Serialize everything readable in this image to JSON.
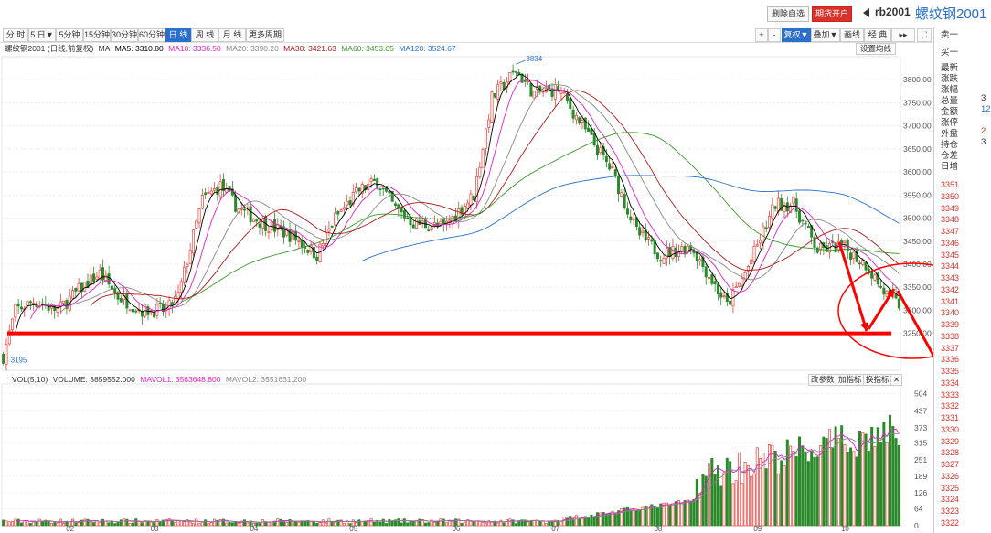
{
  "header": {
    "delete_watch_label": "删除自选",
    "open_account_label": "期货开户",
    "symbol_code": "rb2001",
    "symbol_name": "螺纹钢2001"
  },
  "period_tabs": [
    "分 时",
    "5 日▼",
    "5分钟",
    "15分钟",
    "30分钟",
    "60分钟",
    "日 线",
    "周 线",
    "月 线",
    "更多周期"
  ],
  "active_tab_index": 6,
  "right_tools": {
    "plus": "+",
    "minus": "-",
    "restore": "复权▼",
    "overlay": "叠加▼",
    "draw": "画线",
    "classic": "经 典",
    "extra": "▸▸",
    "fullscreen": "⛶"
  },
  "ma_legend": {
    "name": "螺纹钢2001 (日线,前复权)",
    "ma": "MA",
    "ma5": "MA5: 3310.80",
    "ma10": "MA10: 3336.50",
    "ma20": "MA20: 3390.20",
    "ma30": "MA30: 3421.63",
    "ma60": "MA60: 3453.05",
    "ma120": "MA120: 3524.67",
    "set_ma": "设置均线",
    "colors": {
      "ma5": "#000000",
      "ma10": "#e020c8",
      "ma20": "#888888",
      "ma30": "#b01818",
      "ma60": "#3a9a2a",
      "ma120": "#2a6fcc"
    }
  },
  "volume_legend": {
    "name": "VOL(5,10)",
    "volume": "VOLUME: 3859552.000",
    "mavol1": "MAVOL1: 3563648.800",
    "mavol2": "MAVOL2: 3551631.200",
    "change_params": "改参数",
    "add_indicator": "加指标",
    "switch_indicator": "换指标",
    "close": "✕"
  },
  "side_panel": {
    "sell1": "卖一",
    "buy1": "买一",
    "labels": [
      "最新",
      "涨跌",
      "涨幅",
      "总量",
      "金额",
      "涨停",
      "外盘",
      "持仓",
      "仓差",
      "日增"
    ],
    "values": [
      "",
      "",
      "",
      "3",
      "12",
      "",
      "2",
      "3",
      "",
      ""
    ],
    "price_ladder": [
      "3351",
      "3350",
      "3349",
      "3348",
      "3347",
      "3346",
      "3345",
      "3344",
      "3343",
      "3342",
      "3341",
      "3340",
      "3339",
      "3338",
      "3337",
      "3336",
      "3335",
      "3334",
      "3333",
      "3332",
      "3331",
      "3330",
      "3329",
      "3328",
      "3327",
      "3326",
      "3325",
      "3324",
      "3323",
      "3322"
    ]
  },
  "chart_data": {
    "type": "candlestick",
    "price_axis": {
      "ticks": [
        "3800.00",
        "3750.00",
        "3700.00",
        "3650.00",
        "3600.00",
        "3550.00",
        "3500.00",
        "3450.00",
        "3400.00",
        "3350.00",
        "3300.00",
        "3250.00"
      ],
      "range": [
        3170,
        3850
      ]
    },
    "volume_axis": {
      "ticks": [
        "504",
        "437",
        "373",
        "315",
        "251",
        "189",
        "126",
        "64",
        "0"
      ],
      "range": [
        0,
        540
      ]
    },
    "x_ticks": [
      "02",
      "03",
      "04",
      "05",
      "06",
      "07",
      "08",
      "09",
      "10"
    ],
    "annotations": {
      "high_label": "3834",
      "low_label": "3195"
    },
    "support_line_price": 3250,
    "up_color": "#e8413c",
    "down_color": "#2b8a2b"
  }
}
